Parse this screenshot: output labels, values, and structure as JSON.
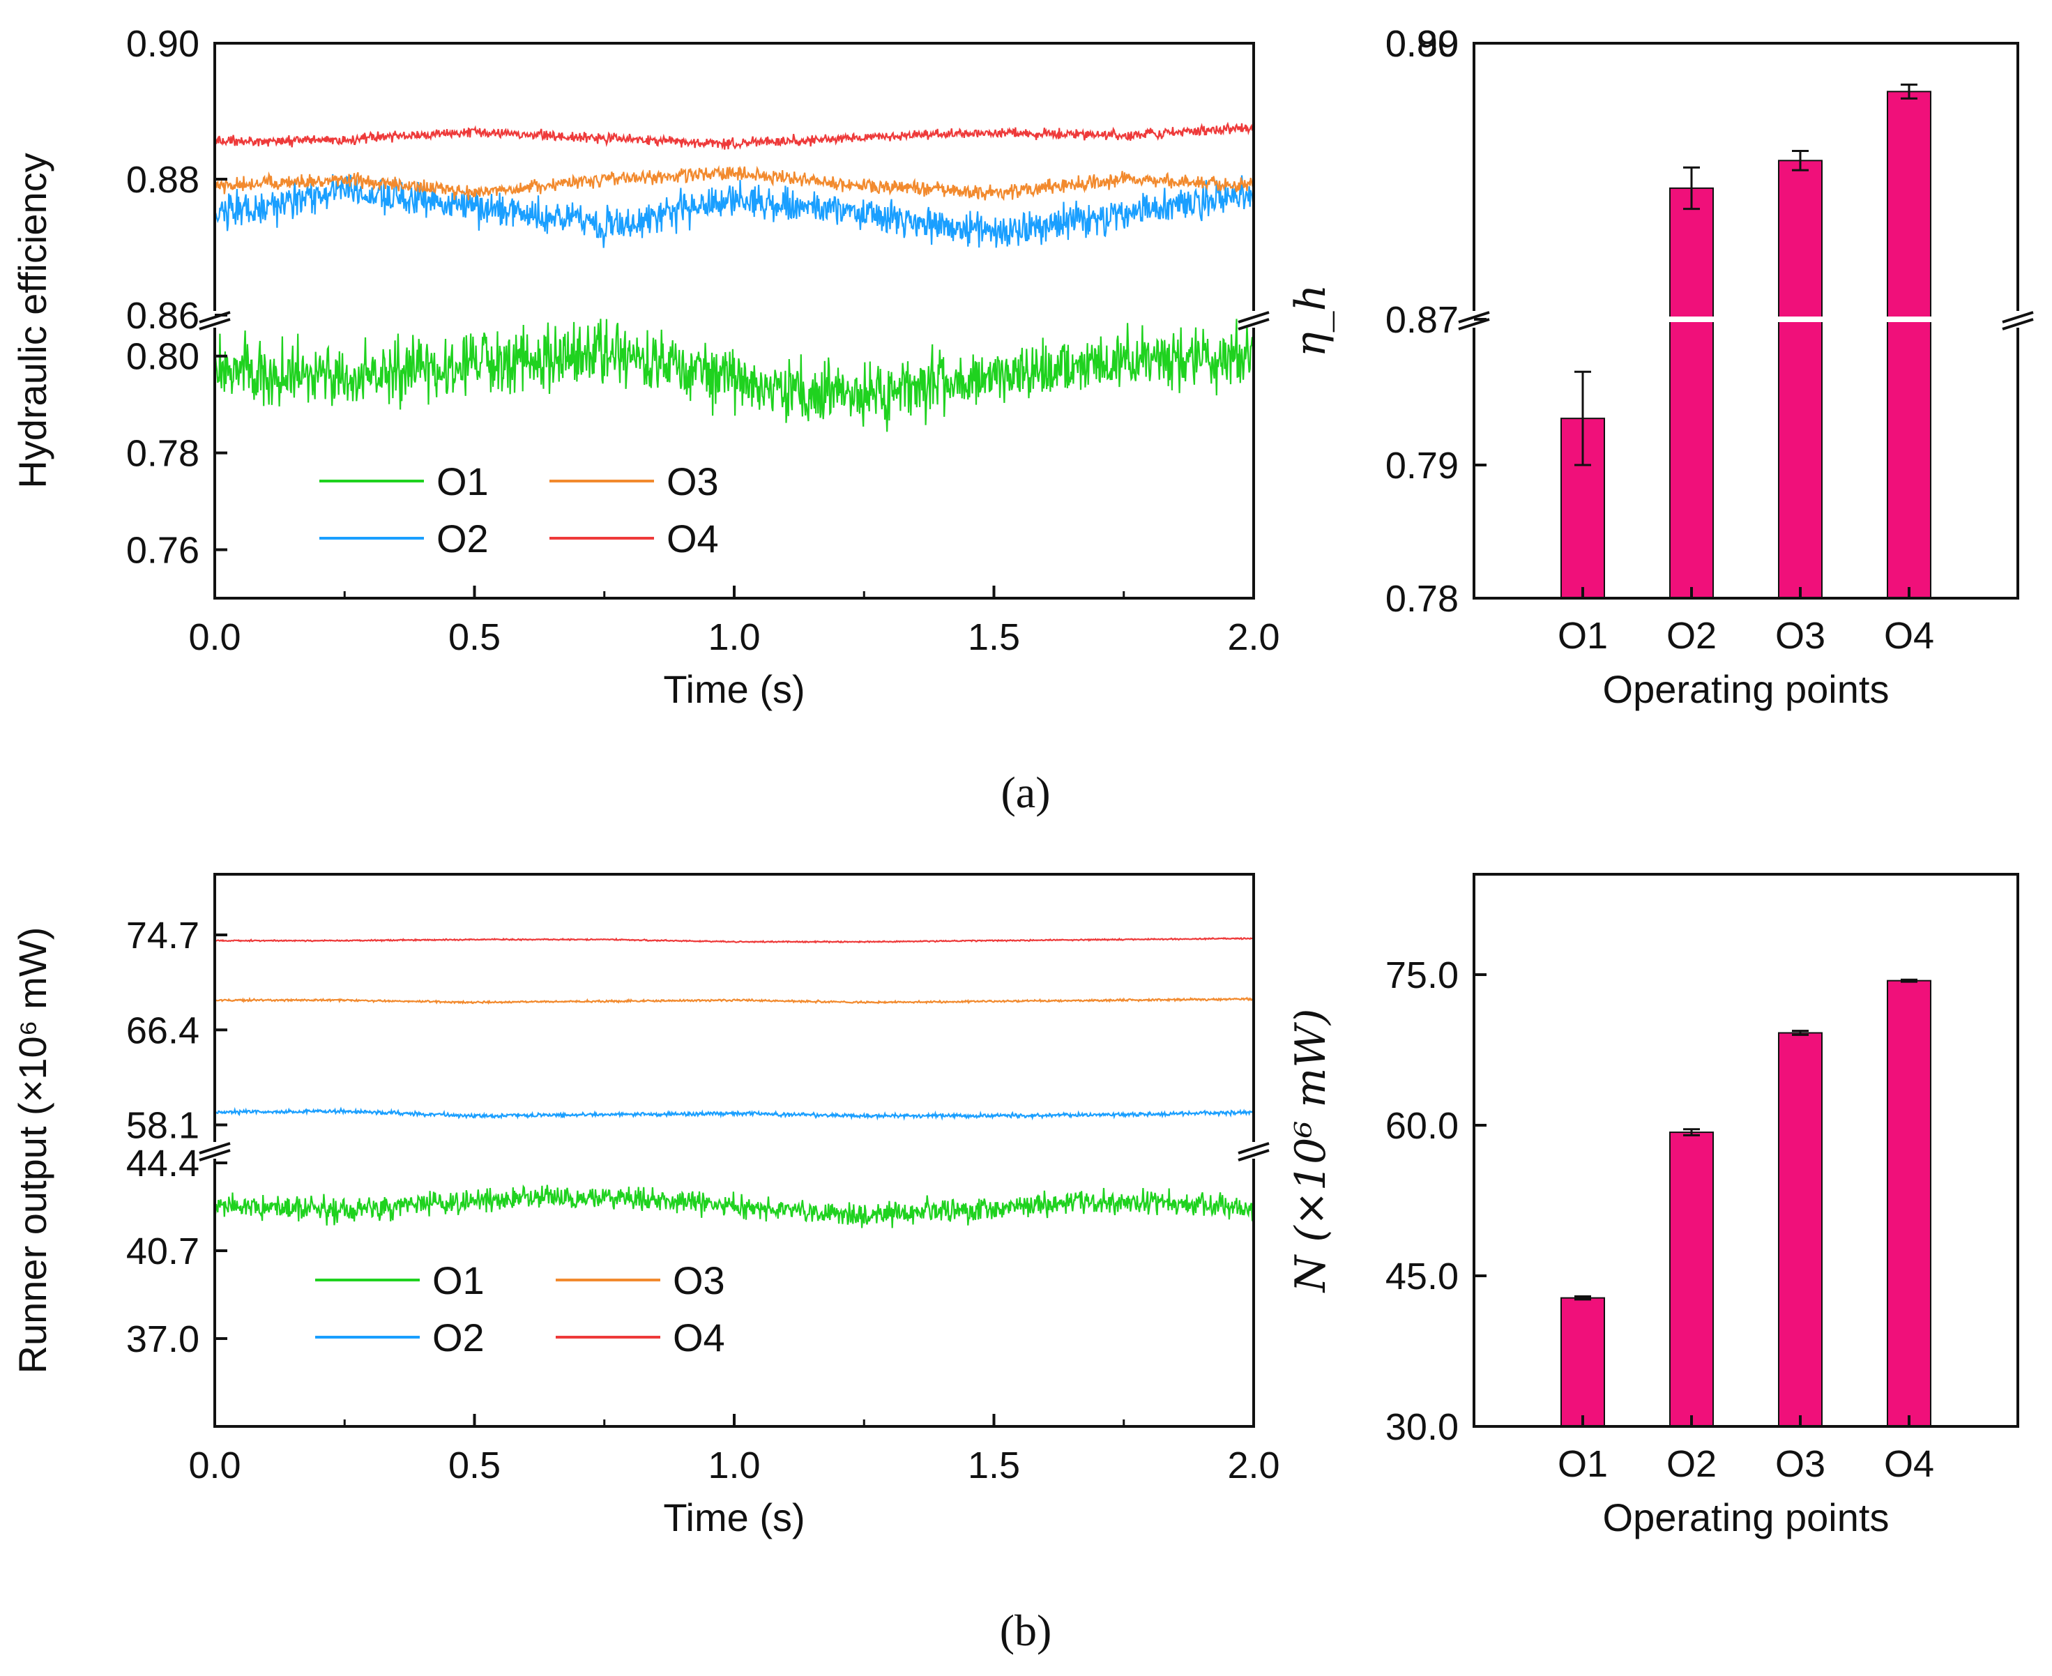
{
  "panel_labels": [
    "(a)",
    "(b)"
  ],
  "colors": {
    "O1": "#1fd21f",
    "O2": "#1a9fff",
    "O3": "#f28a2e",
    "O4": "#ee3a3a",
    "bar": "#f0107a"
  },
  "chart_data": [
    {
      "id": "eff-time",
      "type": "line",
      "xlabel": "Time (s)",
      "ylabel": "Hydraulic efficiency",
      "xlim": [
        0,
        2
      ],
      "xticks": [
        "0.0",
        "0.5",
        "1.0",
        "1.5",
        "2.0"
      ],
      "axis_break": true,
      "upper_ylim": [
        0.86,
        0.9
      ],
      "upper_yticks": [
        "0.86",
        "0.88",
        "0.90"
      ],
      "lower_ylim": [
        0.75,
        0.805
      ],
      "lower_yticks": [
        "0.76",
        "0.78",
        "0.80"
      ],
      "legend": [
        "O1",
        "O2",
        "O3",
        "O4"
      ],
      "series": [
        {
          "name": "O1",
          "mean": [
            0.798,
            0.795,
            0.799,
            0.801,
            0.795,
            0.792,
            0.796,
            0.799,
            0.801
          ],
          "noise": 0.0045
        },
        {
          "name": "O2",
          "mean": [
            0.875,
            0.878,
            0.876,
            0.873,
            0.877,
            0.875,
            0.872,
            0.875,
            0.878
          ],
          "noise": 0.0018
        },
        {
          "name": "O3",
          "mean": [
            0.879,
            0.88,
            0.878,
            0.88,
            0.881,
            0.879,
            0.878,
            0.88,
            0.879
          ],
          "noise": 0.0007
        },
        {
          "name": "O4",
          "mean": [
            0.8855,
            0.8858,
            0.887,
            0.886,
            0.8852,
            0.8862,
            0.8868,
            0.8865,
            0.8875
          ],
          "noise": 0.0005
        }
      ]
    },
    {
      "id": "eff-bar",
      "type": "bar",
      "xlabel": "Operating points",
      "ylabel": "η_h",
      "categories": [
        "O1",
        "O2",
        "O3",
        "O4"
      ],
      "values": [
        0.7935,
        0.8795,
        0.8815,
        0.8865
      ],
      "errors": [
        0.0035,
        0.0015,
        0.0007,
        0.0005
      ],
      "axis_break": true,
      "upper_ylim": [
        0.87,
        0.89
      ],
      "upper_yticks": [
        "0.87",
        "0.89",
        "0.90"
      ],
      "lower_ylim": [
        0.78,
        0.8
      ],
      "lower_yticks": [
        "0.78",
        "0.79"
      ]
    },
    {
      "id": "power-time",
      "type": "line",
      "xlabel": "Time (s)",
      "ylabel": "Runner output (×10⁶ mW)",
      "xlim": [
        0,
        2
      ],
      "xticks": [
        "0.0",
        "0.5",
        "1.0",
        "1.5",
        "2.0"
      ],
      "axis_break": true,
      "upper_ylim": [
        56.0,
        80.0
      ],
      "upper_yticks": [
        "58.1",
        "66.4",
        "74.7"
      ],
      "lower_ylim": [
        33.3,
        44.4
      ],
      "lower_yticks": [
        "37.0",
        "40.7",
        "44.4"
      ],
      "legend": [
        "O1",
        "O2",
        "O3",
        "O4"
      ],
      "series": [
        {
          "name": "O1",
          "mean": [
            42.6,
            42.4,
            42.8,
            43.0,
            42.6,
            42.2,
            42.5,
            42.8,
            42.5
          ],
          "noise": 0.35
        },
        {
          "name": "O2",
          "mean": [
            59.2,
            59.3,
            58.9,
            59.0,
            59.1,
            58.9,
            58.9,
            59.0,
            59.2
          ],
          "noise": 0.12
        },
        {
          "name": "O3",
          "mean": [
            69.0,
            69.0,
            68.8,
            68.9,
            69.0,
            68.8,
            68.9,
            69.0,
            69.1
          ],
          "noise": 0.06
        },
        {
          "name": "O4",
          "mean": [
            74.2,
            74.2,
            74.3,
            74.3,
            74.1,
            74.1,
            74.2,
            74.3,
            74.4
          ],
          "noise": 0.04
        }
      ]
    },
    {
      "id": "power-bar",
      "type": "bar",
      "xlabel": "Operating points",
      "ylabel": "N (×10⁶ mW)",
      "categories": [
        "O1",
        "O2",
        "O3",
        "O4"
      ],
      "values": [
        42.8,
        59.3,
        69.2,
        74.4
      ],
      "errors": [
        0.15,
        0.3,
        0.2,
        0.1
      ],
      "ylim": [
        30,
        85
      ],
      "yticks": [
        "30.0",
        "45.0",
        "60.0",
        "75.0"
      ]
    }
  ]
}
